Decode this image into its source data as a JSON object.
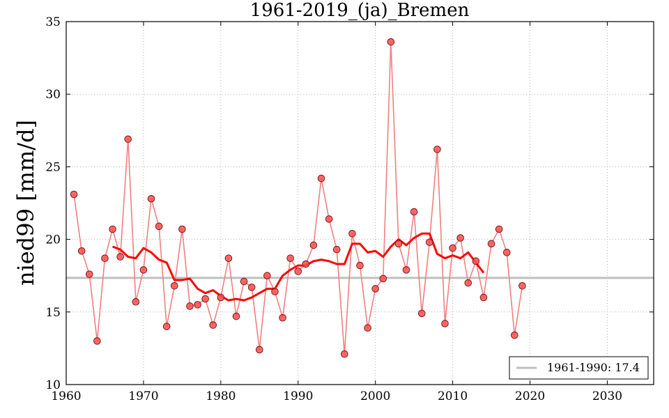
{
  "chart_data": {
    "type": "line",
    "title": "1961-2019_(ja)_Bremen",
    "xlabel": "",
    "ylabel": "nied99 [mm/d]",
    "xlim": [
      1960,
      2036
    ],
    "ylim": [
      10,
      35
    ],
    "xticks": [
      1960,
      1970,
      1980,
      1990,
      2000,
      2010,
      2020,
      2030
    ],
    "yticks": [
      10,
      15,
      20,
      25,
      30,
      35
    ],
    "grid": true,
    "legend_position": "bottom-right",
    "colors": {
      "points": "#ff4d4d",
      "points_edge": "#7a1a1a",
      "line": "#f08080",
      "smooth": "#ff0000",
      "reference": "#bfbfbf"
    },
    "series": [
      {
        "name": "nied99",
        "x": [
          1961,
          1962,
          1963,
          1964,
          1965,
          1966,
          1967,
          1968,
          1969,
          1970,
          1971,
          1972,
          1973,
          1974,
          1975,
          1976,
          1977,
          1978,
          1979,
          1980,
          1981,
          1982,
          1983,
          1984,
          1985,
          1986,
          1987,
          1988,
          1989,
          1990,
          1991,
          1992,
          1993,
          1994,
          1995,
          1996,
          1997,
          1998,
          1999,
          2000,
          2001,
          2002,
          2003,
          2004,
          2005,
          2006,
          2007,
          2008,
          2009,
          2010,
          2011,
          2012,
          2013,
          2014,
          2015,
          2016,
          2017,
          2018,
          2019
        ],
        "values": [
          23.1,
          19.2,
          17.6,
          13.0,
          18.7,
          20.7,
          18.8,
          26.9,
          15.7,
          17.9,
          22.8,
          20.9,
          14.0,
          16.8,
          20.7,
          15.4,
          15.5,
          15.9,
          14.1,
          16.0,
          18.7,
          14.7,
          17.1,
          16.7,
          12.4,
          17.5,
          16.4,
          14.6,
          18.7,
          17.8,
          18.3,
          19.6,
          24.2,
          21.4,
          19.3,
          12.1,
          20.4,
          18.2,
          13.9,
          16.6,
          17.3,
          33.6,
          19.7,
          17.9,
          21.9,
          14.9,
          19.8,
          26.2,
          14.2,
          19.4,
          20.1,
          17.0,
          18.5,
          16.0,
          19.7,
          20.7,
          19.1,
          13.4,
          16.8
        ]
      },
      {
        "name": "smoothed",
        "x": [
          1966,
          1967,
          1968,
          1969,
          1970,
          1971,
          1972,
          1973,
          1974,
          1975,
          1976,
          1977,
          1978,
          1979,
          1980,
          1981,
          1982,
          1983,
          1984,
          1985,
          1986,
          1987,
          1988,
          1989,
          1990,
          1991,
          1992,
          1993,
          1994,
          1995,
          1996,
          1997,
          1998,
          1999,
          2000,
          2001,
          2002,
          2003,
          2004,
          2005,
          2006,
          2007,
          2008,
          2009,
          2010,
          2011,
          2012,
          2013,
          2014
        ],
        "values": [
          19.5,
          19.3,
          18.8,
          18.7,
          19.4,
          19.1,
          18.6,
          18.4,
          17.2,
          17.2,
          17.3,
          16.6,
          16.3,
          16.5,
          16.1,
          15.8,
          15.9,
          15.8,
          16.0,
          16.3,
          16.6,
          16.6,
          17.5,
          17.9,
          18.2,
          18.2,
          18.5,
          18.6,
          18.5,
          18.3,
          18.3,
          19.7,
          19.7,
          19.1,
          19.2,
          18.8,
          19.5,
          20.0,
          19.6,
          20.1,
          20.4,
          20.4,
          19.0,
          18.7,
          18.9,
          18.7,
          19.1,
          18.4,
          17.7
        ]
      }
    ],
    "reference": {
      "label": "1961-1990: 17.4",
      "value": 17.35
    }
  }
}
